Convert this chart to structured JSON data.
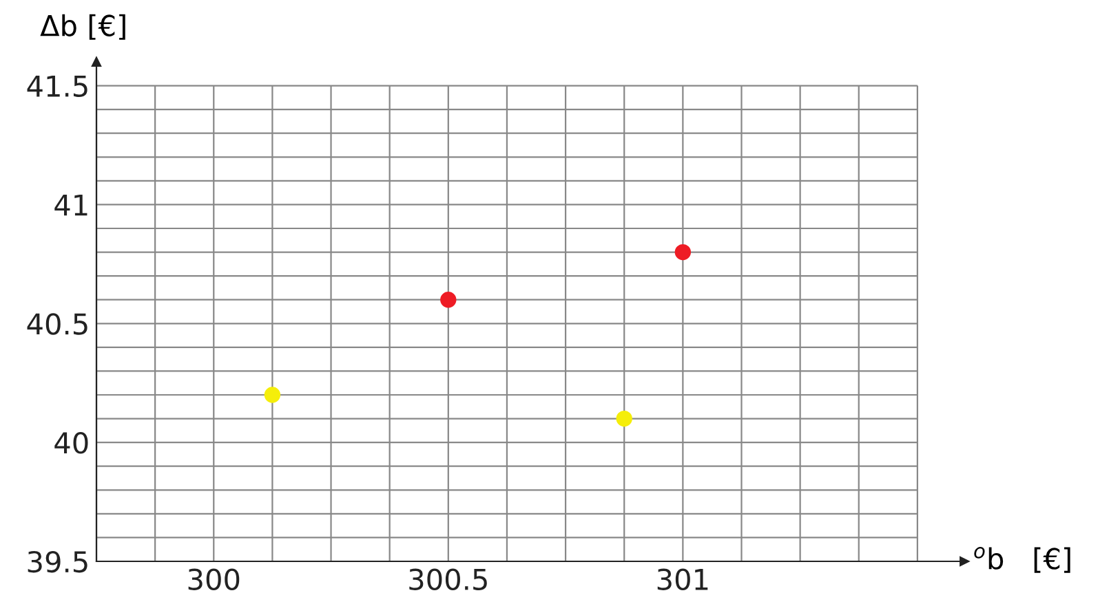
{
  "chart_data": {
    "type": "scatter",
    "xlabel": "$^{o}$b   [€]",
    "ylabel": "Δb [€]",
    "series": [
      {
        "color": "#f5ee0a",
        "x": [
          300.125,
          300.875
        ],
        "values": [
          40.2,
          40.1
        ]
      },
      {
        "color": "#ee1c25",
        "x": [
          300.5,
          301.0
        ],
        "values": [
          40.6,
          40.8
        ]
      }
    ],
    "marker": "circle",
    "xlim": [
      299.75,
      301.6
    ],
    "ylim": [
      39.5,
      41.6
    ],
    "xticks": [
      {
        "value": 299.75,
        "label": null
      },
      {
        "value": 299.875,
        "label": null
      },
      300,
      {
        "value": 300.125,
        "label": null
      },
      {
        "value": 300.25,
        "label": null
      },
      {
        "value": 300.375,
        "label": null
      },
      300.5,
      {
        "value": 300.625,
        "label": null
      },
      {
        "value": 300.75,
        "label": null
      },
      {
        "value": 300.875,
        "label": null
      },
      301,
      {
        "value": 301.125,
        "label": null
      },
      {
        "value": 301.25,
        "label": null
      },
      {
        "value": 301.375,
        "label": null
      },
      {
        "value": 301.5,
        "label": null
      }
    ],
    "yticks": [
      39.5,
      {
        "value": 39.6,
        "label": null
      },
      {
        "value": 39.7,
        "label": null
      },
      {
        "value": 39.8,
        "label": null
      },
      {
        "value": 39.9,
        "label": null
      },
      40,
      {
        "value": 40.1,
        "label": null
      },
      {
        "value": 40.2,
        "label": null
      },
      {
        "value": 40.3,
        "label": null
      },
      {
        "value": 40.4,
        "label": null
      },
      40.5,
      {
        "value": 40.6,
        "label": null
      },
      {
        "value": 40.7,
        "label": null
      },
      {
        "value": 40.8,
        "label": null
      },
      {
        "value": 40.9,
        "label": null
      },
      41,
      {
        "value": 41.1,
        "label": null
      },
      {
        "value": 41.2,
        "label": null
      },
      {
        "value": 41.3,
        "label": null
      },
      {
        "value": 41.4,
        "label": null
      },
      41.5
    ],
    "grid": true
  }
}
